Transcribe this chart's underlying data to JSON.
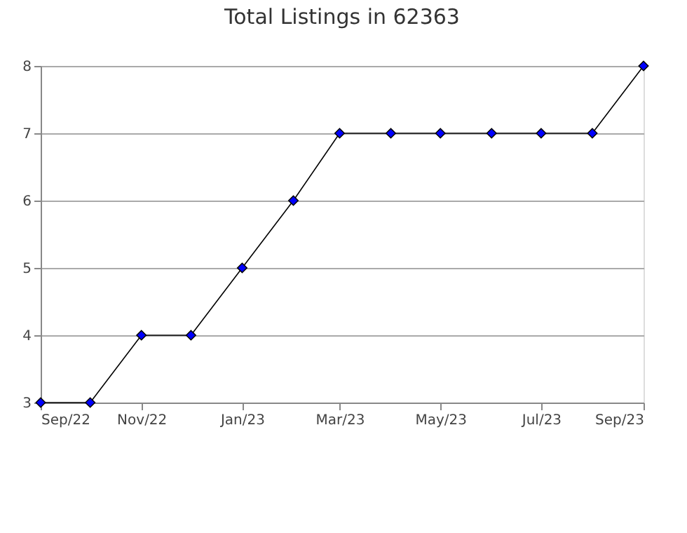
{
  "chart_data": {
    "type": "line",
    "title": "Total Listings in 62363",
    "x": [
      "2022-09",
      "2022-10",
      "2022-11",
      "2022-12",
      "2023-01",
      "2023-02",
      "2023-03",
      "2023-04",
      "2023-05",
      "2023-06",
      "2023-07",
      "2023-08",
      "2023-09"
    ],
    "series": [
      {
        "color": "#0000ff",
        "values": [
          3,
          3,
          4,
          4,
          5,
          6,
          7,
          7,
          7,
          7,
          7,
          7,
          8
        ]
      }
    ],
    "xlim": [
      "2022-09",
      "2023-09"
    ],
    "xticks": [
      {
        "value": "2022-09",
        "label": "Sep/22"
      },
      {
        "value": "2022-11",
        "label": "Nov/22"
      },
      {
        "value": "2023-01",
        "label": "Jan/23"
      },
      {
        "value": "2023-03",
        "label": "Mar/23"
      },
      {
        "value": "2023-05",
        "label": "May/23"
      },
      {
        "value": "2023-07",
        "label": "Jul/23"
      },
      {
        "value": "2023-09",
        "label": "Sep/23"
      }
    ],
    "ylim": [
      3,
      8
    ],
    "yticks": [
      3,
      4,
      5,
      6,
      7,
      8
    ],
    "grid": "y",
    "marker": "diamond",
    "line_style": "solid"
  }
}
